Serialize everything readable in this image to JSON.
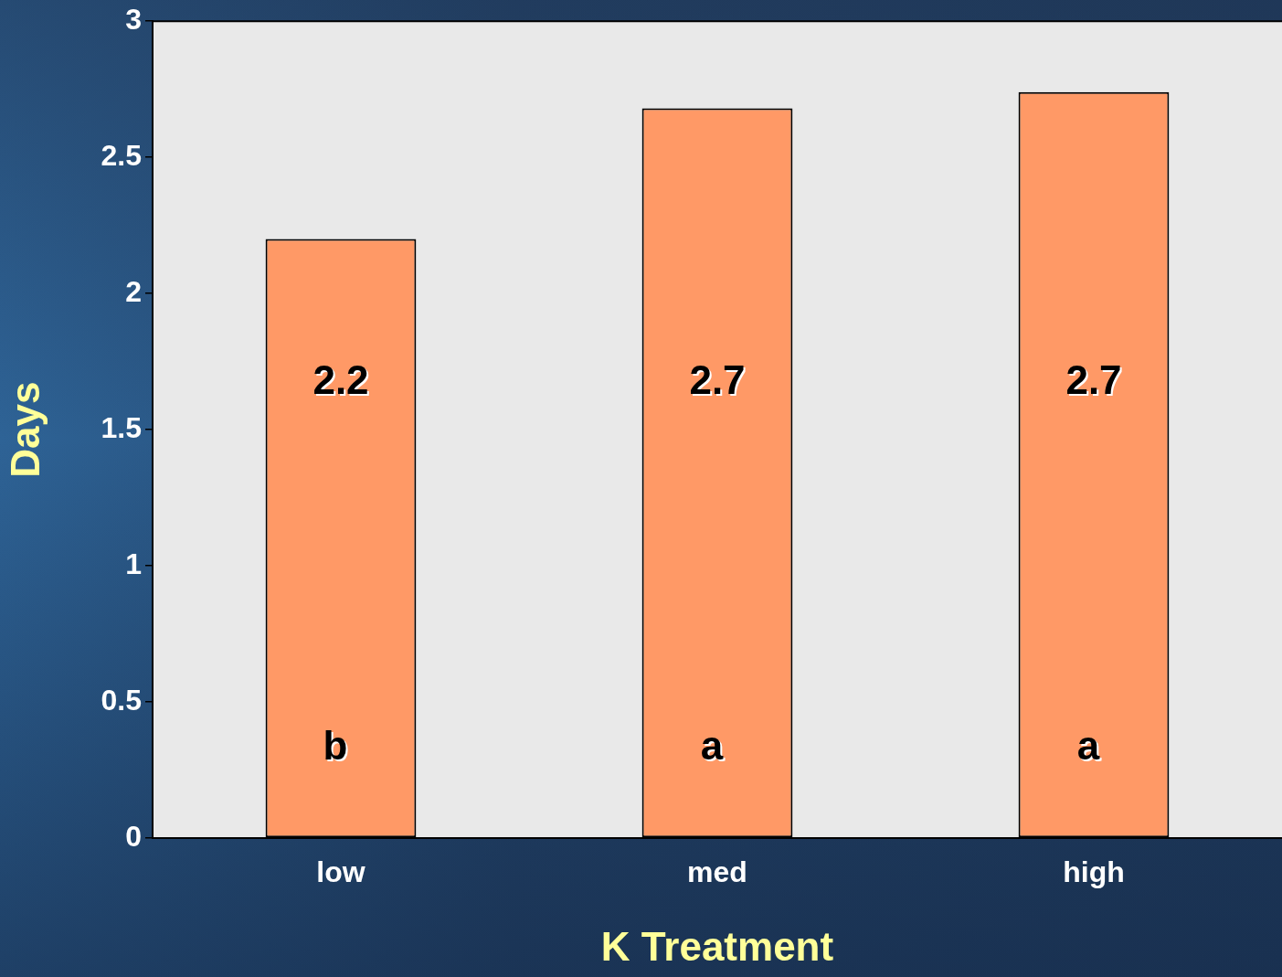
{
  "chart_data": {
    "type": "bar",
    "xlabel": "K Treatment",
    "ylabel": "Days",
    "categories": [
      "low",
      "med",
      "high"
    ],
    "values": [
      2.2,
      2.68,
      2.74
    ],
    "value_labels": [
      "2.2",
      "2.7",
      "2.7"
    ],
    "color": "#ff9966",
    "ylim": [
      0,
      3
    ],
    "yticks": [
      0,
      0.5,
      1,
      1.5,
      2,
      2.5,
      3
    ],
    "grid": false,
    "legend": false,
    "annotations": [
      "b",
      "a",
      "a"
    ]
  }
}
